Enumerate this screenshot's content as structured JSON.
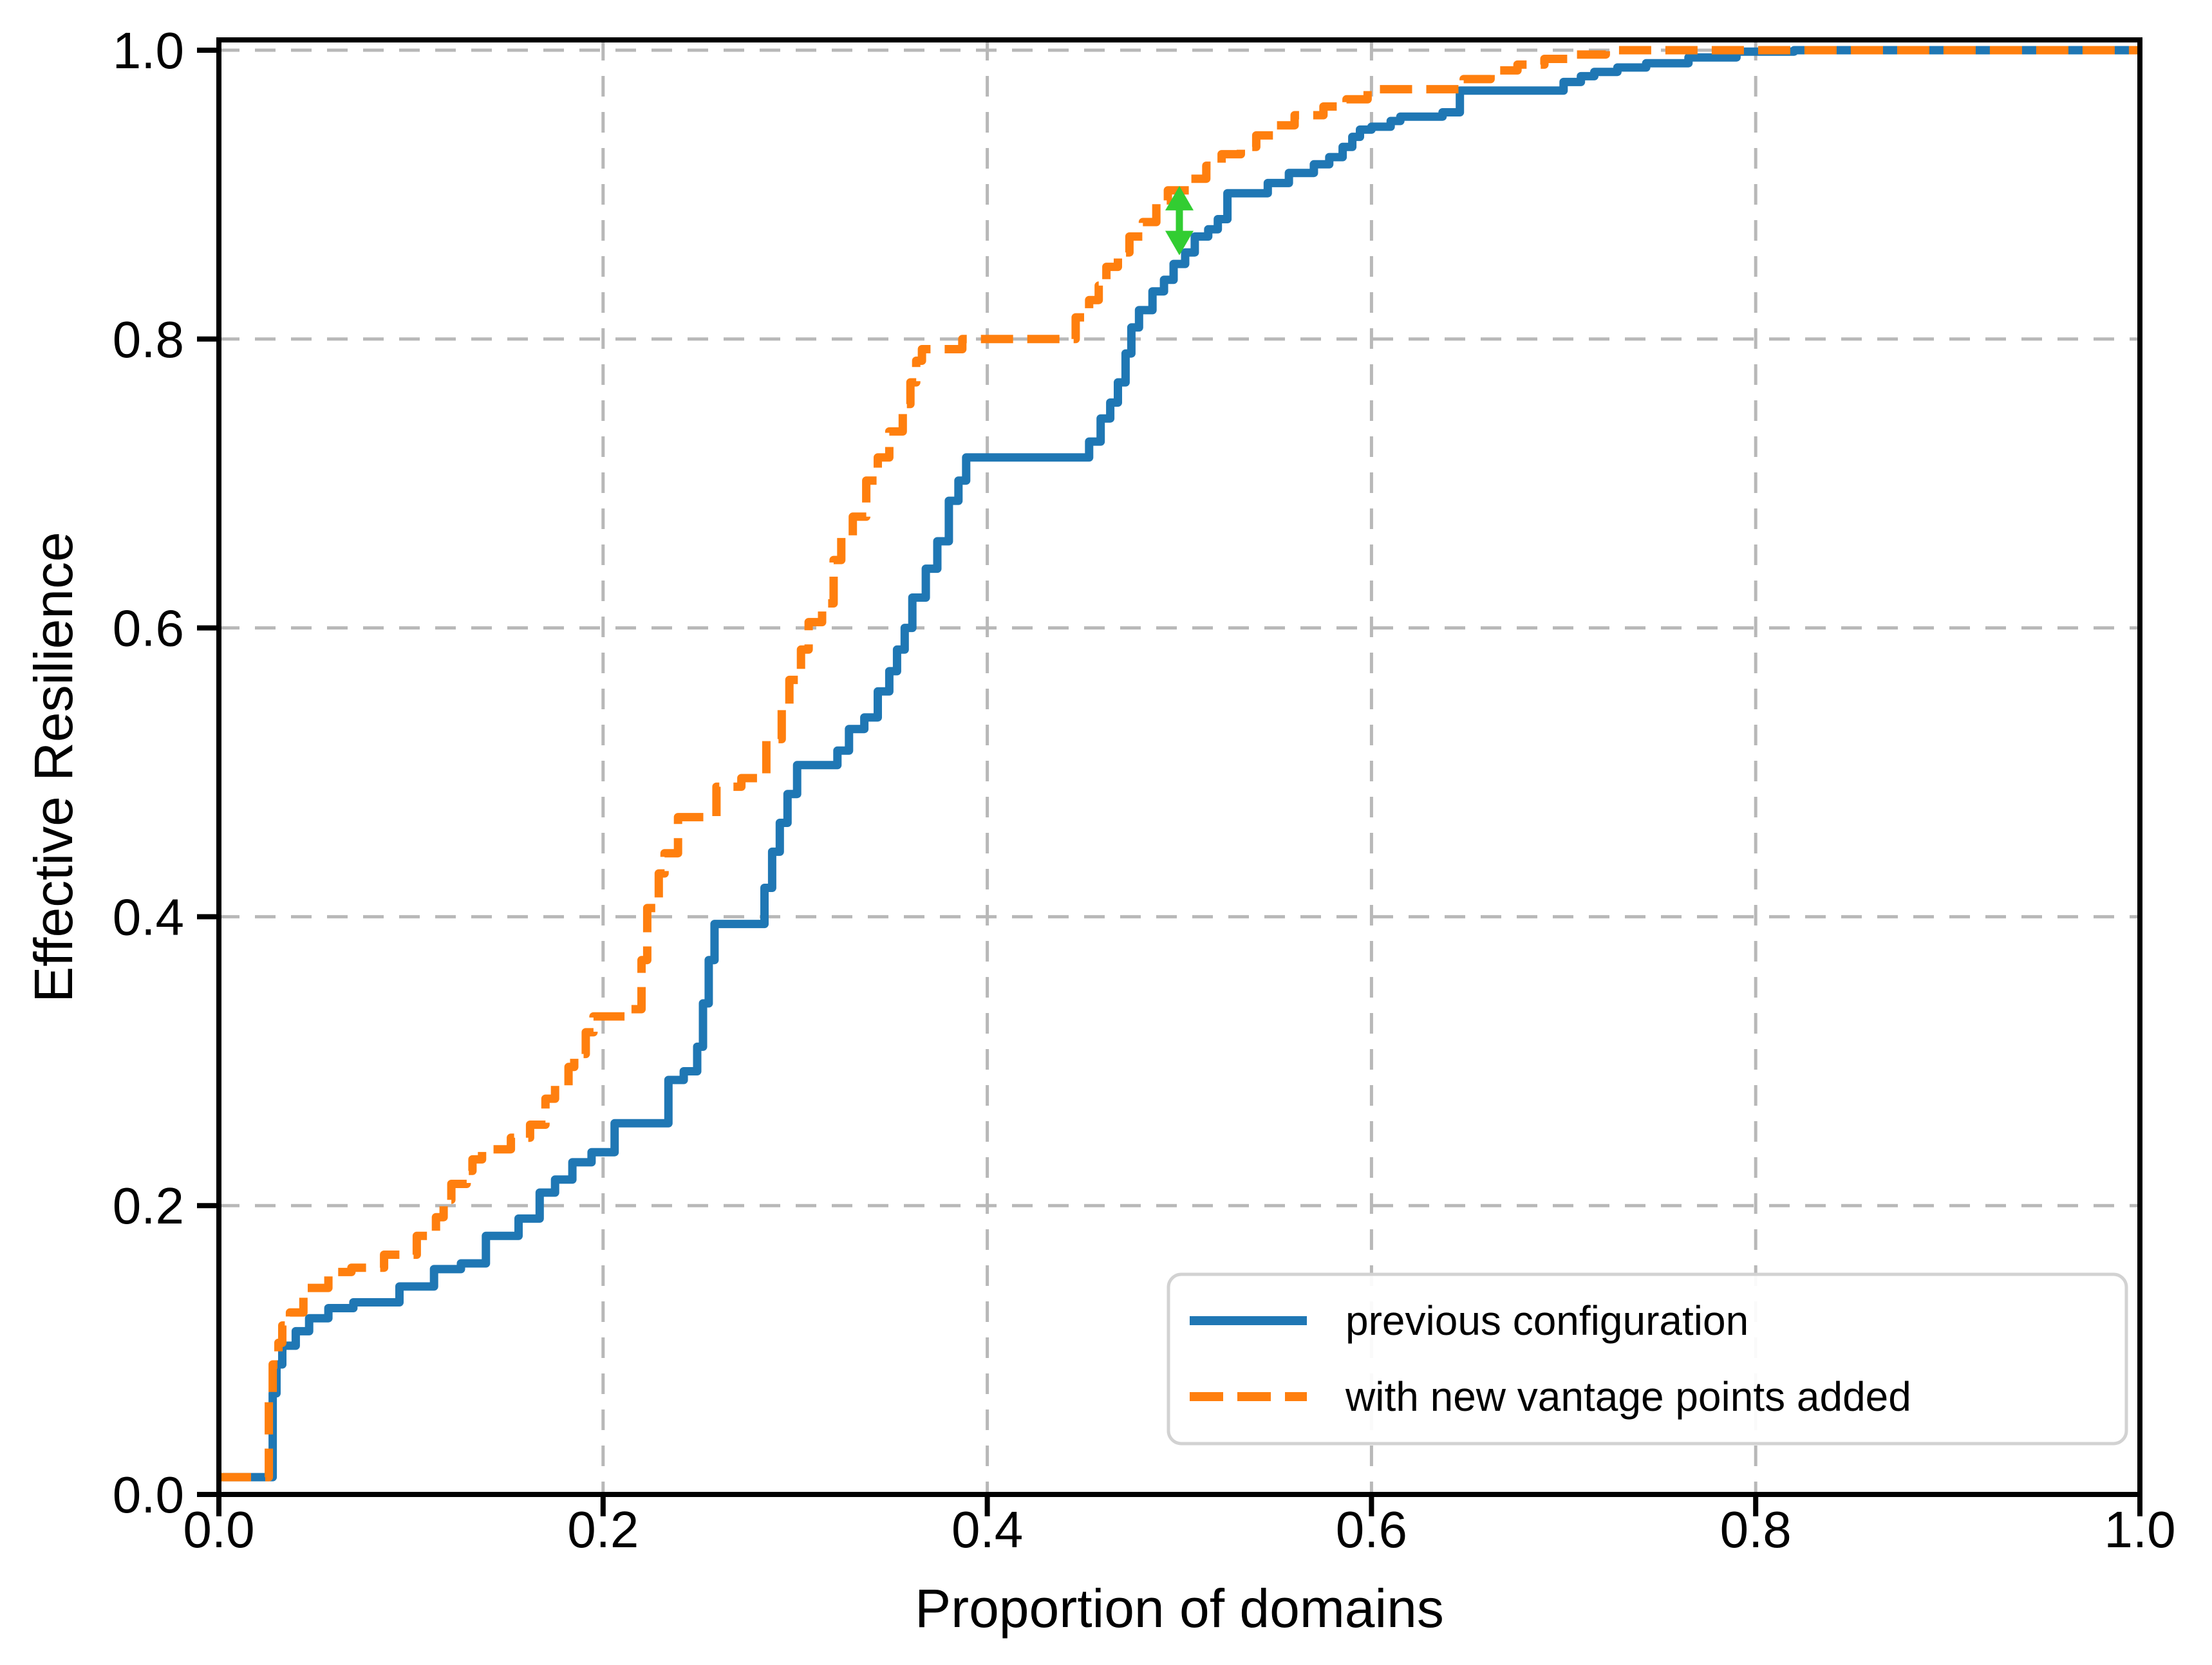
{
  "chart_data": {
    "type": "line",
    "subtype": "step-cdf",
    "title": "",
    "xlabel": "Proportion of domains",
    "ylabel": "Effective Resilience",
    "xlim": [
      0.0,
      1.0
    ],
    "ylim": [
      0.0,
      1.007
    ],
    "x_ticks": {
      "values": [
        0.0,
        0.2,
        0.4,
        0.6,
        0.8,
        1.0
      ],
      "labels": [
        "0.0",
        "0.2",
        "0.4",
        "0.6",
        "0.8",
        "1.0"
      ]
    },
    "y_ticks": {
      "values": [
        0.0,
        0.2,
        0.4,
        0.6,
        0.8,
        1.0
      ],
      "labels": [
        "0.0",
        "0.2",
        "0.4",
        "0.6",
        "0.8",
        "1.0"
      ]
    },
    "grid": {
      "show": true,
      "color": "#b8b8b8",
      "dash": [
        32,
        24
      ],
      "width": 5
    },
    "frame_color": "#000000",
    "legend": {
      "position": "lower right",
      "border_color": "#d2d2d2",
      "background": "#ffffff"
    },
    "series": [
      {
        "name": "previous configuration",
        "color": "#1f77b4",
        "style": "solid",
        "line_width": 13,
        "points": [
          [
            0.0,
            0.012
          ],
          [
            0.028,
            0.07
          ],
          [
            0.03,
            0.09
          ],
          [
            0.033,
            0.103
          ],
          [
            0.04,
            0.113
          ],
          [
            0.047,
            0.122
          ],
          [
            0.057,
            0.129
          ],
          [
            0.07,
            0.133
          ],
          [
            0.094,
            0.144
          ],
          [
            0.112,
            0.156
          ],
          [
            0.126,
            0.16
          ],
          [
            0.139,
            0.179
          ],
          [
            0.156,
            0.191
          ],
          [
            0.167,
            0.209
          ],
          [
            0.175,
            0.218
          ],
          [
            0.184,
            0.23
          ],
          [
            0.194,
            0.237
          ],
          [
            0.206,
            0.257
          ],
          [
            0.234,
            0.287
          ],
          [
            0.242,
            0.293
          ],
          [
            0.249,
            0.31
          ],
          [
            0.252,
            0.34
          ],
          [
            0.255,
            0.37
          ],
          [
            0.258,
            0.395
          ],
          [
            0.284,
            0.42
          ],
          [
            0.288,
            0.445
          ],
          [
            0.292,
            0.465
          ],
          [
            0.296,
            0.485
          ],
          [
            0.301,
            0.505
          ],
          [
            0.322,
            0.515
          ],
          [
            0.328,
            0.53
          ],
          [
            0.336,
            0.538
          ],
          [
            0.343,
            0.556
          ],
          [
            0.349,
            0.57
          ],
          [
            0.353,
            0.585
          ],
          [
            0.357,
            0.6
          ],
          [
            0.361,
            0.621
          ],
          [
            0.368,
            0.641
          ],
          [
            0.374,
            0.66
          ],
          [
            0.38,
            0.688
          ],
          [
            0.385,
            0.702
          ],
          [
            0.389,
            0.718
          ],
          [
            0.453,
            0.729
          ],
          [
            0.459,
            0.745
          ],
          [
            0.464,
            0.756
          ],
          [
            0.468,
            0.77
          ],
          [
            0.472,
            0.79
          ],
          [
            0.475,
            0.808
          ],
          [
            0.479,
            0.82
          ],
          [
            0.486,
            0.833
          ],
          [
            0.492,
            0.841
          ],
          [
            0.497,
            0.852
          ],
          [
            0.503,
            0.86
          ],
          [
            0.508,
            0.871
          ],
          [
            0.515,
            0.876
          ],
          [
            0.52,
            0.883
          ],
          [
            0.525,
            0.901
          ],
          [
            0.546,
            0.908
          ],
          [
            0.557,
            0.915
          ],
          [
            0.57,
            0.921
          ],
          [
            0.578,
            0.926
          ],
          [
            0.585,
            0.933
          ],
          [
            0.59,
            0.94
          ],
          [
            0.594,
            0.945
          ],
          [
            0.6,
            0.947
          ],
          [
            0.61,
            0.951
          ],
          [
            0.615,
            0.954
          ],
          [
            0.637,
            0.957
          ],
          [
            0.646,
            0.972
          ],
          [
            0.7,
            0.978
          ],
          [
            0.709,
            0.982
          ],
          [
            0.716,
            0.985
          ],
          [
            0.728,
            0.988
          ],
          [
            0.743,
            0.991
          ],
          [
            0.765,
            0.995
          ],
          [
            0.79,
            0.999
          ],
          [
            0.82,
            1.0
          ]
        ]
      },
      {
        "name": "with new vantage points added",
        "color": "#ff7f0e",
        "style": "dashed",
        "dash": [
          50,
          22
        ],
        "line_width": 13,
        "points": [
          [
            0.0,
            0.012
          ],
          [
            0.026,
            0.07
          ],
          [
            0.028,
            0.09
          ],
          [
            0.031,
            0.105
          ],
          [
            0.033,
            0.117
          ],
          [
            0.037,
            0.126
          ],
          [
            0.044,
            0.143
          ],
          [
            0.057,
            0.154
          ],
          [
            0.069,
            0.157
          ],
          [
            0.086,
            0.166
          ],
          [
            0.103,
            0.179
          ],
          [
            0.113,
            0.192
          ],
          [
            0.117,
            0.204
          ],
          [
            0.121,
            0.215
          ],
          [
            0.129,
            0.224
          ],
          [
            0.132,
            0.232
          ],
          [
            0.137,
            0.239
          ],
          [
            0.152,
            0.247
          ],
          [
            0.162,
            0.256
          ],
          [
            0.17,
            0.274
          ],
          [
            0.175,
            0.283
          ],
          [
            0.182,
            0.296
          ],
          [
            0.185,
            0.305
          ],
          [
            0.191,
            0.32
          ],
          [
            0.195,
            0.331
          ],
          [
            0.213,
            0.336
          ],
          [
            0.22,
            0.37
          ],
          [
            0.223,
            0.406
          ],
          [
            0.229,
            0.43
          ],
          [
            0.232,
            0.444
          ],
          [
            0.239,
            0.469
          ],
          [
            0.259,
            0.49
          ],
          [
            0.272,
            0.496
          ],
          [
            0.285,
            0.523
          ],
          [
            0.293,
            0.547
          ],
          [
            0.297,
            0.564
          ],
          [
            0.303,
            0.585
          ],
          [
            0.307,
            0.604
          ],
          [
            0.314,
            0.617
          ],
          [
            0.32,
            0.647
          ],
          [
            0.324,
            0.664
          ],
          [
            0.33,
            0.677
          ],
          [
            0.337,
            0.702
          ],
          [
            0.343,
            0.718
          ],
          [
            0.349,
            0.736
          ],
          [
            0.356,
            0.755
          ],
          [
            0.36,
            0.77
          ],
          [
            0.363,
            0.785
          ],
          [
            0.366,
            0.793
          ],
          [
            0.387,
            0.8
          ],
          [
            0.446,
            0.815
          ],
          [
            0.453,
            0.827
          ],
          [
            0.458,
            0.837
          ],
          [
            0.462,
            0.85
          ],
          [
            0.468,
            0.86
          ],
          [
            0.474,
            0.871
          ],
          [
            0.481,
            0.881
          ],
          [
            0.488,
            0.896
          ],
          [
            0.494,
            0.903
          ],
          [
            0.505,
            0.911
          ],
          [
            0.514,
            0.92
          ],
          [
            0.522,
            0.928
          ],
          [
            0.532,
            0.933
          ],
          [
            0.54,
            0.941
          ],
          [
            0.55,
            0.948
          ],
          [
            0.56,
            0.955
          ],
          [
            0.575,
            0.961
          ],
          [
            0.587,
            0.966
          ],
          [
            0.598,
            0.973
          ],
          [
            0.648,
            0.98
          ],
          [
            0.662,
            0.986
          ],
          [
            0.676,
            0.99
          ],
          [
            0.69,
            0.994
          ],
          [
            0.706,
            0.997
          ],
          [
            0.722,
            1.0
          ]
        ]
      }
    ],
    "annotation": {
      "type": "double-headed-arrow",
      "x": 0.5,
      "y_bottom": 0.858,
      "y_top": 0.906,
      "color": "#32CD32"
    }
  }
}
